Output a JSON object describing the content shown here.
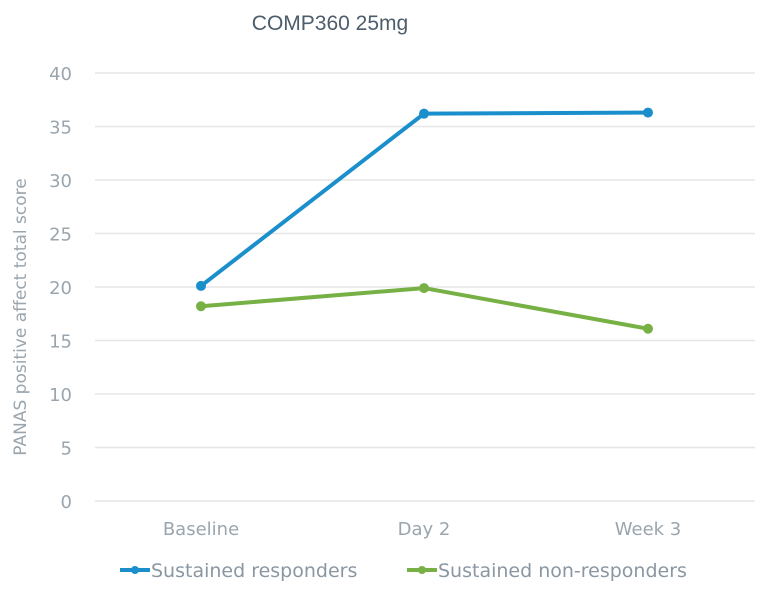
{
  "chart_data": {
    "type": "line",
    "title": "COMP360 25mg",
    "xlabel": "",
    "ylabel": "PANAS positive affect total score",
    "categories": [
      "Baseline",
      "Day 2",
      "Week 3"
    ],
    "ylim": [
      0,
      40
    ],
    "yticks": [
      0,
      5,
      10,
      15,
      20,
      25,
      30,
      35,
      40
    ],
    "grid": true,
    "legend_position": "bottom",
    "series": [
      {
        "name": "Sustained responders",
        "values": [
          20.1,
          36.2,
          36.3
        ],
        "color": "#1b8fcc"
      },
      {
        "name": "Sustained non-responders",
        "values": [
          18.2,
          19.9,
          16.1
        ],
        "color": "#77b145"
      }
    ]
  }
}
